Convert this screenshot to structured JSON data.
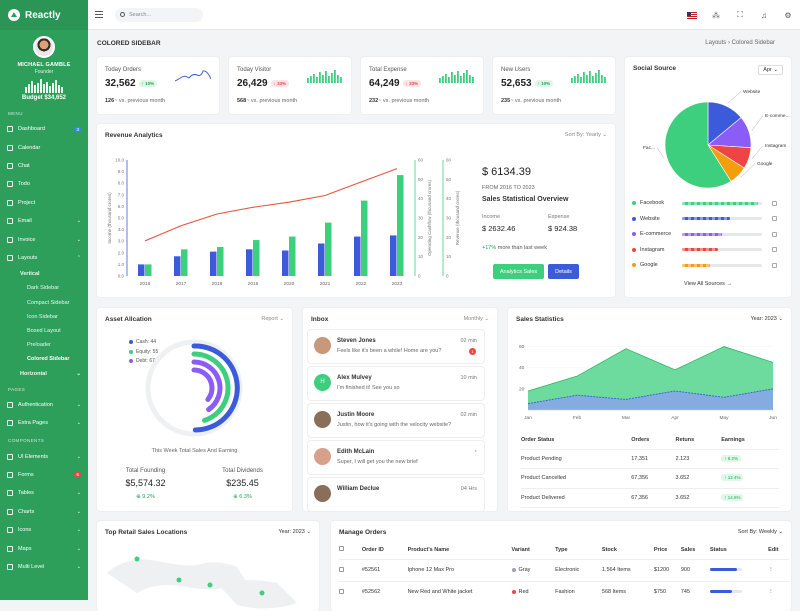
{
  "brand": {
    "name": "Reactly"
  },
  "profile": {
    "name": "MICHAEL GAMBLE",
    "role": "Founder",
    "budget": "Budget $34,652",
    "bars": [
      6,
      9,
      12,
      8,
      10,
      14,
      9,
      11,
      7,
      10,
      13,
      8,
      6
    ]
  },
  "sidebar": {
    "sec_menu": "MENU",
    "menu": [
      {
        "label": "Dashboard",
        "badge": "3"
      },
      {
        "label": "Calendar"
      },
      {
        "label": "Chat"
      },
      {
        "label": "Todo"
      },
      {
        "label": "Project"
      },
      {
        "label": "Email",
        "chev": "⌄"
      },
      {
        "label": "Invoice",
        "chev": "⌄"
      },
      {
        "label": "Layouts",
        "chev": "⌃"
      }
    ],
    "vertical": "Vertical",
    "sub": [
      "Dark Sidebar",
      "Compact Sidebar",
      "Icon Sidebar",
      "Boxed Layout",
      "Preloader",
      "Colored Sidebar"
    ],
    "horizontal": "Horizontal",
    "sec_pages": "PAGES",
    "pages": [
      {
        "label": "Authentication",
        "chev": "⌄"
      },
      {
        "label": "Extra Pages",
        "chev": "⌄"
      }
    ],
    "sec_components": "COMPONENTS",
    "components": [
      {
        "label": "UI Elements",
        "chev": "⌄"
      },
      {
        "label": "Forms",
        "badge": "6"
      },
      {
        "label": "Tables",
        "chev": "⌄"
      },
      {
        "label": "Charts",
        "chev": "⌄"
      },
      {
        "label": "Icons",
        "chev": "⌄"
      },
      {
        "label": "Maps",
        "chev": "⌄"
      },
      {
        "label": "Multi Level",
        "chev": "⌄"
      }
    ]
  },
  "topbar": {
    "search_placeholder": "Search..."
  },
  "page": {
    "title": "COLORED SIDEBAR",
    "crumb_parent": "Layouts",
    "crumb_sep": "›",
    "crumb_current": "Colored Sidebar"
  },
  "stats": [
    {
      "label": "Today Orders",
      "value": "32,562",
      "pill": "↑ 10%",
      "up": true,
      "sub_val": "126",
      "sub_text": "~ vs. previous month",
      "chart": "line"
    },
    {
      "label": "Today Visitor",
      "value": "26,429",
      "pill": "↓ 33%",
      "up": false,
      "sub_val": "568",
      "sub_text": "~ vs. previous month",
      "chart": "bars"
    },
    {
      "label": "Total Expense",
      "value": "64,249",
      "pill": "↓ 33%",
      "up": false,
      "sub_val": "232",
      "sub_text": "~ vs. previous month",
      "chart": "bars"
    },
    {
      "label": "New Users",
      "value": "52,653",
      "pill": "↑ 10%",
      "up": true,
      "sub_val": "235",
      "sub_text": "~ vs. previous month",
      "chart": "bars"
    }
  ],
  "revenue": {
    "title": "Revenue Analytics",
    "sort": "Sort By: Yearly ⌄",
    "price": "$ 6134.39",
    "from": "FROM 2016 TO 2023",
    "heading": "Sales Statistical Overview",
    "income_label": "Income",
    "income_val": "$ 2632.46",
    "expense_label": "Expense",
    "expense_val": "$ 924.38",
    "note_pct": "+17%",
    "note_text": "more than last week",
    "btn1": "Analytics Sales",
    "btn2": "Details"
  },
  "chart_data": [
    {
      "type": "bar",
      "categories": [
        "2016",
        "2017",
        "2018",
        "2019",
        "2020",
        "2021",
        "2022",
        "2023"
      ],
      "series": [
        {
          "name": "Income (thousand crores)",
          "values": [
            1.0,
            1.7,
            2.1,
            2.3,
            2.2,
            2.8,
            3.4,
            3.5
          ]
        },
        {
          "name": "",
          "values": [
            1.0,
            2.3,
            2.5,
            3.1,
            3.4,
            4.6,
            6.5,
            8.7
          ]
        },
        {
          "name": "Operating Cashflow (thousand crores)",
          "values": [
            2.5,
            3.4,
            4.1,
            4.5,
            4.8,
            5.2,
            6.0,
            6.8
          ],
          "line": true
        }
      ],
      "yticks_left": [
        "0.0",
        "1.0",
        "2.0",
        "3.0",
        "4.0",
        "5.0",
        "6.0",
        "7.0",
        "8.0",
        "9.0",
        "10.0"
      ],
      "yticks_mid": [
        "0",
        "10",
        "20",
        "30",
        "40",
        "50",
        "60"
      ],
      "yticks_right": [
        "0",
        "10",
        "20",
        "30",
        "40",
        "50",
        "60"
      ],
      "ylabel_left": "Income (thousand crores)",
      "ylabel_mid": "Operating Cashflow (thousand crores)",
      "ylabel_right": "Revenue (thousand crores)"
    },
    {
      "type": "pie",
      "title": "Social Source",
      "categories": [
        "Website",
        "E-comme...",
        "Instagram",
        "Google",
        "Fac..."
      ],
      "values": [
        14,
        12,
        8,
        7,
        59
      ],
      "colors": [
        "#3b5bdb",
        "#8b5cf6",
        "#ef4444",
        "#f59e0b",
        "#3ecf7e"
      ]
    },
    {
      "type": "area",
      "title": "Sales Statistics",
      "categories": [
        "Jan",
        "Feb",
        "Mar",
        "Apr",
        "May",
        "Jun"
      ],
      "series": [
        {
          "name": "",
          "values": [
            18,
            32,
            58,
            38,
            60,
            45
          ]
        },
        {
          "name": "",
          "values": [
            6,
            14,
            10,
            18,
            12,
            20
          ]
        }
      ],
      "yticks": [
        "20",
        "40",
        "60"
      ],
      "ylim": [
        0,
        70
      ]
    }
  ],
  "social": {
    "title": "Social Source",
    "select": "Apr ⌄",
    "rows": [
      {
        "name": "Facebook",
        "color": "#3ecf7e",
        "pct": 0.95
      },
      {
        "name": "Website",
        "color": "#3b5bdb",
        "pct": 0.6
      },
      {
        "name": "E-commerce",
        "color": "#8b5cf6",
        "pct": 0.5
      },
      {
        "name": "Instagram",
        "color": "#ef4444",
        "pct": 0.45
      },
      {
        "name": "Google",
        "color": "#f59e0b",
        "pct": 0.35
      }
    ],
    "view_all": "View All Sources →"
  },
  "asset": {
    "title": "Asset Allcation",
    "opt": "Report ⌄",
    "legend": [
      {
        "label": "Cash: 44",
        "color": "#3b5bdb"
      },
      {
        "label": "Equity: 55",
        "color": "#3ecf7e"
      },
      {
        "label": "Debt: 67",
        "color": "#8b5cf6"
      }
    ],
    "caption": "This Week Total Sales And Earning",
    "f_label": "Total Founding",
    "f_val": "$5,574.32",
    "f_pct": "⊕ 9.2%",
    "d_label": "Total Dividends",
    "d_val": "$235.45",
    "d_pct": "⊕ 6.3%"
  },
  "inbox": {
    "title": "Inbox",
    "opt": "Monthly ⌄",
    "items": [
      {
        "name": "Steven Jones",
        "msg": "Feels like it's been a while! Home are you?",
        "time": "02 min",
        "badge": "1",
        "av": "#c9977a"
      },
      {
        "name": "Alex Mulvey",
        "msg": "I'm finished it! See you so",
        "time": "10 min",
        "initial": "H",
        "av": "#3ecf7e"
      },
      {
        "name": "Justin Moore",
        "msg": "Justin, how it's going with the velocity website?",
        "time": "02 min",
        "av": "#8a6e5a"
      },
      {
        "name": "Edith McLain",
        "msg": "Super, I will get you the new brief",
        "time": "",
        "av": "#d6a08a"
      },
      {
        "name": "William Declue",
        "msg": "",
        "time": "04 Hrs",
        "av": "#8a6e5a"
      }
    ]
  },
  "sales": {
    "title": "Sales Statistics",
    "opt": "Year: 2023 ⌄",
    "headers": [
      "Order Status",
      "Orders",
      "Retuns",
      "Earnings"
    ],
    "rows": [
      {
        "status": "Product Pending",
        "orders": "17,351",
        "returns": "2.123",
        "earn": "↑ 8.2%"
      },
      {
        "status": "Product Cancelled",
        "orders": "67,356",
        "returns": "3.652",
        "earn": "↑ 12.4%"
      },
      {
        "status": "Product Delivered",
        "orders": "67,356",
        "returns": "3.652",
        "earn": "↑ 14.6%"
      }
    ]
  },
  "locations": {
    "title": "Top Retail Sales Locations",
    "opt": "Year: 2023 ⌄"
  },
  "orders": {
    "title": "Manage Orders",
    "opt": "Sort By: Weekly ⌄",
    "headers": [
      "Order ID",
      "Product's Name",
      "Variant",
      "Type",
      "Stock",
      "Price",
      "Sales",
      "Status",
      "Edit"
    ],
    "rows": [
      {
        "id": "#52561",
        "name": "Iphone 12 Max Pro",
        "variant": "Gray",
        "vcolor": "#9ca3af",
        "type": "Electronic",
        "stock": "1.564 Items",
        "price": "$1200",
        "sales": "900",
        "status": 0.85,
        "edit": "⋮"
      },
      {
        "id": "#52562",
        "name": "New Red and White jacket",
        "variant": "Red",
        "vcolor": "#ef4444",
        "type": "Fashion",
        "stock": "568 Items",
        "price": "$750",
        "sales": "745",
        "status": 0.7,
        "edit": "⋮"
      }
    ]
  }
}
